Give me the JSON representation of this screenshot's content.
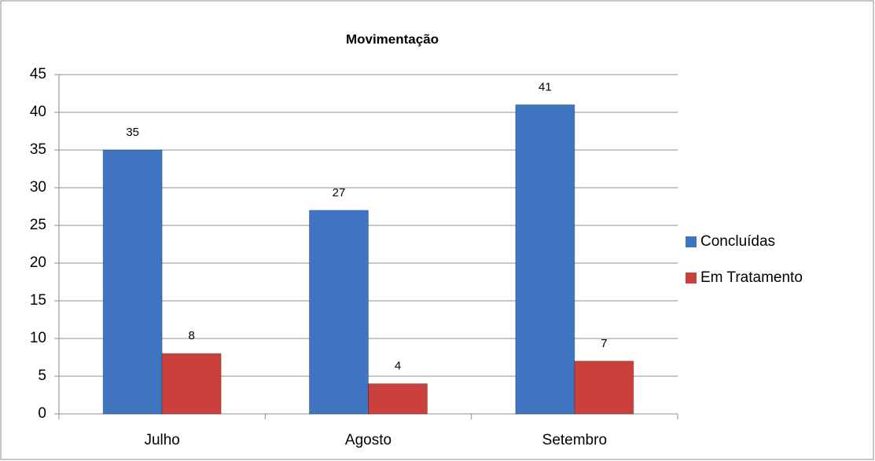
{
  "chart_data": {
    "type": "bar",
    "title": "Movimentação",
    "categories": [
      "Julho",
      "Agosto",
      "Setembro"
    ],
    "series": [
      {
        "name": "Concluídas",
        "color": "#3f74c0",
        "values": [
          35,
          27,
          41
        ]
      },
      {
        "name": "Em Tratamento",
        "color": "#c9403c",
        "values": [
          8,
          4,
          7
        ]
      }
    ],
    "ylim": [
      0,
      45
    ],
    "yticks": [
      0,
      5,
      10,
      15,
      20,
      25,
      30,
      35,
      40,
      45
    ],
    "grid": true,
    "legend": "right"
  }
}
